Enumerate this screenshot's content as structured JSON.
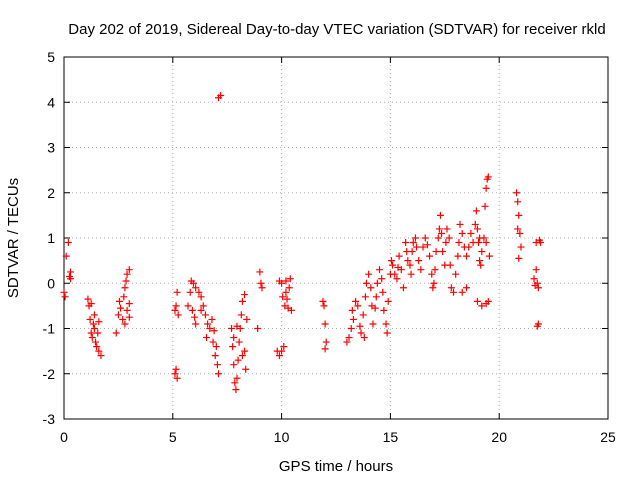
{
  "chart_data": {
    "type": "scatter",
    "title": "Day 202 of 2019, Sidereal Day-to-day VTEC variation (SDTVAR) for receiver rkld",
    "xlabel": "GPS time / hours",
    "ylabel": "SDTVAR / TECUs",
    "xlim": [
      0,
      25
    ],
    "ylim": [
      -3,
      5
    ],
    "xticks": [
      "0",
      "5",
      "10",
      "15",
      "20",
      "25"
    ],
    "yticks": [
      "-3",
      "-2",
      "-1",
      "0",
      "1",
      "2",
      "3",
      "4",
      "5"
    ],
    "grid": true,
    "marker": "plus",
    "color": "#ff0000",
    "series": [
      {
        "name": "SDTVAR",
        "points": [
          [
            0.0,
            -0.2
          ],
          [
            0.05,
            -0.3
          ],
          [
            0.1,
            0.6
          ],
          [
            0.2,
            0.9
          ],
          [
            0.25,
            0.15
          ],
          [
            0.3,
            0.1
          ],
          [
            0.3,
            0.25
          ],
          [
            1.1,
            -0.35
          ],
          [
            1.15,
            -0.5
          ],
          [
            1.2,
            -0.8
          ],
          [
            1.25,
            -1.1
          ],
          [
            1.3,
            -1.2
          ],
          [
            1.35,
            -0.9
          ],
          [
            1.4,
            -0.7
          ],
          [
            1.45,
            -1.3
          ],
          [
            1.5,
            -1.4
          ],
          [
            1.55,
            -1.1
          ],
          [
            1.6,
            -0.85
          ],
          [
            1.6,
            -1.5
          ],
          [
            1.7,
            -1.6
          ],
          [
            1.25,
            -0.45
          ],
          [
            1.4,
            -1.0
          ],
          [
            2.4,
            -1.1
          ],
          [
            2.5,
            -0.7
          ],
          [
            2.55,
            -0.4
          ],
          [
            2.6,
            -0.55
          ],
          [
            2.7,
            -0.8
          ],
          [
            2.75,
            -0.3
          ],
          [
            2.8,
            -0.1
          ],
          [
            2.85,
            0.05
          ],
          [
            2.9,
            0.2
          ],
          [
            3.0,
            0.3
          ],
          [
            2.9,
            -0.6
          ],
          [
            3.0,
            -0.75
          ],
          [
            2.8,
            -0.9
          ],
          [
            3.0,
            -0.45
          ],
          [
            5.1,
            -2.0
          ],
          [
            5.15,
            -1.9
          ],
          [
            5.2,
            -2.1
          ],
          [
            5.1,
            -0.6
          ],
          [
            5.15,
            -0.5
          ],
          [
            5.2,
            -0.2
          ],
          [
            5.25,
            -0.7
          ],
          [
            5.7,
            -0.5
          ],
          [
            5.8,
            -0.2
          ],
          [
            5.85,
            0.05
          ],
          [
            5.95,
            0.0
          ],
          [
            6.05,
            -0.1
          ],
          [
            6.2,
            -0.2
          ],
          [
            6.3,
            -0.3
          ],
          [
            6.4,
            -0.5
          ],
          [
            6.5,
            -0.7
          ],
          [
            6.6,
            -0.9
          ],
          [
            6.7,
            -1.0
          ],
          [
            6.85,
            -1.3
          ],
          [
            6.95,
            -1.6
          ],
          [
            7.05,
            -1.8
          ],
          [
            7.1,
            -2.0
          ],
          [
            6.0,
            -0.75
          ],
          [
            6.05,
            -0.9
          ],
          [
            6.3,
            -0.6
          ],
          [
            6.55,
            -1.2
          ],
          [
            6.8,
            -0.8
          ],
          [
            6.9,
            -1.05
          ],
          [
            7.0,
            -1.4
          ],
          [
            5.9,
            -0.6
          ],
          [
            7.1,
            4.1
          ],
          [
            7.2,
            4.15
          ],
          [
            7.7,
            -1.0
          ],
          [
            7.75,
            -1.4
          ],
          [
            7.8,
            -1.8
          ],
          [
            7.85,
            -2.2
          ],
          [
            7.9,
            -2.35
          ],
          [
            7.95,
            -2.1
          ],
          [
            8.0,
            -1.7
          ],
          [
            8.05,
            -1.3
          ],
          [
            8.1,
            -1.0
          ],
          [
            8.15,
            -0.7
          ],
          [
            8.2,
            -0.4
          ],
          [
            8.3,
            -0.25
          ],
          [
            8.3,
            -1.5
          ],
          [
            8.35,
            -1.9
          ],
          [
            8.4,
            -0.8
          ],
          [
            7.8,
            -1.2
          ],
          [
            7.95,
            -0.95
          ],
          [
            8.2,
            -1.6
          ],
          [
            8.9,
            -1.0
          ],
          [
            9.0,
            0.25
          ],
          [
            9.05,
            0.0
          ],
          [
            9.1,
            -0.1
          ],
          [
            9.8,
            -1.5
          ],
          [
            9.9,
            -1.6
          ],
          [
            10.0,
            -1.5
          ],
          [
            10.1,
            -1.4
          ],
          [
            9.9,
            0.05
          ],
          [
            10.0,
            0.0
          ],
          [
            10.05,
            -0.3
          ],
          [
            10.15,
            -0.5
          ],
          [
            10.25,
            -0.35
          ],
          [
            10.35,
            -0.1
          ],
          [
            10.4,
            0.1
          ],
          [
            10.2,
            0.05
          ],
          [
            10.3,
            -0.55
          ],
          [
            10.45,
            -0.6
          ],
          [
            10.2,
            -0.2
          ],
          [
            11.9,
            -0.4
          ],
          [
            11.95,
            -0.5
          ],
          [
            12.0,
            -0.9
          ],
          [
            12.05,
            -1.3
          ],
          [
            12.0,
            -1.45
          ],
          [
            13.0,
            -1.3
          ],
          [
            13.1,
            -1.2
          ],
          [
            13.2,
            -1.0
          ],
          [
            13.25,
            -0.6
          ],
          [
            13.3,
            -0.8
          ],
          [
            13.4,
            -0.4
          ],
          [
            13.5,
            -0.5
          ],
          [
            13.6,
            -0.95
          ],
          [
            13.65,
            -1.1
          ],
          [
            13.8,
            -1.2
          ],
          [
            13.75,
            -0.7
          ],
          [
            13.85,
            -0.3
          ],
          [
            13.9,
            0.0
          ],
          [
            14.0,
            0.2
          ],
          [
            14.1,
            -0.1
          ],
          [
            14.15,
            -0.5
          ],
          [
            14.2,
            -0.9
          ],
          [
            14.3,
            -0.55
          ],
          [
            14.35,
            -0.3
          ],
          [
            14.4,
            0.0
          ],
          [
            14.5,
            0.3
          ],
          [
            14.6,
            0.1
          ],
          [
            14.65,
            -0.2
          ],
          [
            14.7,
            -0.6
          ],
          [
            14.8,
            -0.9
          ],
          [
            14.85,
            -1.1
          ],
          [
            14.9,
            -0.4
          ],
          [
            15.0,
            0.2
          ],
          [
            15.05,
            0.5
          ],
          [
            15.1,
            0.4
          ],
          [
            15.2,
            0.2
          ],
          [
            15.3,
            0.1
          ],
          [
            15.35,
            0.35
          ],
          [
            15.4,
            0.6
          ],
          [
            15.5,
            0.3
          ],
          [
            15.6,
            -0.1
          ],
          [
            15.7,
            0.9
          ],
          [
            15.75,
            0.7
          ],
          [
            15.8,
            0.5
          ],
          [
            15.9,
            0.4
          ],
          [
            15.95,
            0.2
          ],
          [
            16.0,
            0.7
          ],
          [
            16.05,
            0.9
          ],
          [
            16.15,
            1.0
          ],
          [
            16.2,
            0.8
          ],
          [
            16.3,
            0.5
          ],
          [
            16.4,
            0.3
          ],
          [
            16.5,
            0.8
          ],
          [
            16.6,
            1.0
          ],
          [
            16.7,
            0.85
          ],
          [
            16.8,
            0.6
          ],
          [
            16.9,
            0.2
          ],
          [
            16.95,
            -0.1
          ],
          [
            17.0,
            0.0
          ],
          [
            17.05,
            0.3
          ],
          [
            17.1,
            0.7
          ],
          [
            17.2,
            1.0
          ],
          [
            17.25,
            1.2
          ],
          [
            17.3,
            1.5
          ],
          [
            17.35,
            1.1
          ],
          [
            17.4,
            0.7
          ],
          [
            17.5,
            0.4
          ],
          [
            17.55,
            0.9
          ],
          [
            17.6,
            1.2
          ],
          [
            17.7,
            1.0
          ],
          [
            17.75,
            0.4
          ],
          [
            17.8,
            -0.1
          ],
          [
            17.9,
            -0.2
          ],
          [
            18.0,
            0.2
          ],
          [
            18.1,
            0.6
          ],
          [
            18.15,
            0.9
          ],
          [
            18.2,
            1.3
          ],
          [
            18.3,
            1.1
          ],
          [
            18.4,
            0.8
          ],
          [
            18.5,
            0.6
          ],
          [
            18.6,
            0.8
          ],
          [
            18.7,
            1.1
          ],
          [
            18.8,
            0.9
          ],
          [
            18.9,
            1.3
          ],
          [
            19.0,
            1.2
          ],
          [
            19.05,
            0.9
          ],
          [
            19.1,
            0.5
          ],
          [
            19.15,
            0.4
          ],
          [
            19.2,
            0.7
          ],
          [
            19.3,
            1.0
          ],
          [
            19.35,
            1.7
          ],
          [
            19.4,
            2.1
          ],
          [
            19.45,
            2.3
          ],
          [
            19.5,
            2.35
          ],
          [
            19.55,
            0.6
          ],
          [
            19.4,
            0.9
          ],
          [
            18.95,
            1.6
          ],
          [
            19.0,
            -0.4
          ],
          [
            19.2,
            -0.5
          ],
          [
            19.4,
            -0.45
          ],
          [
            19.5,
            -0.4
          ],
          [
            18.3,
            -0.2
          ],
          [
            18.5,
            -0.1
          ],
          [
            19.1,
            1.0
          ],
          [
            20.8,
            2.0
          ],
          [
            20.85,
            1.8
          ],
          [
            20.9,
            1.5
          ],
          [
            20.95,
            1.1
          ],
          [
            21.0,
            0.8
          ],
          [
            20.9,
            0.55
          ],
          [
            20.85,
            1.2
          ],
          [
            21.6,
            0.1
          ],
          [
            21.65,
            -0.05
          ],
          [
            21.7,
            0.3
          ],
          [
            21.75,
            0.0
          ],
          [
            21.8,
            -0.1
          ],
          [
            21.85,
            0.95
          ],
          [
            21.7,
            0.9
          ],
          [
            21.9,
            0.9
          ],
          [
            21.75,
            -0.95
          ],
          [
            21.8,
            -0.9
          ]
        ]
      }
    ]
  }
}
